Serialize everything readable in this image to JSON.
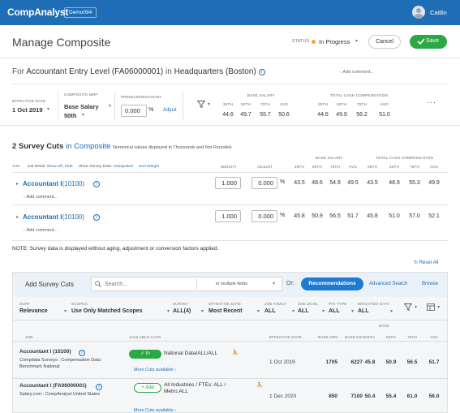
{
  "app": {
    "logo": "CompAnalyst",
    "instance": "Demo094",
    "user": "Caitlin"
  },
  "header": {
    "title": "Manage Composite",
    "status_label": "STATUS",
    "status_value": "In Progress",
    "cancel": "Cancel",
    "save": "Save"
  },
  "for_line": {
    "prefix": "For",
    "job": "Accountant Entry Level (FA06000001)",
    "in": "in",
    "location": "Headquarters (Boston)",
    "add_comment": "Add comment..."
  },
  "composite": {
    "effective_date_label": "EFFECTIVE DATE",
    "effective_date": "1 Oct 2019",
    "composite_mrp_label": "COMPOSITE MRP",
    "mrp_type": "Base Salary",
    "mrp_pct": "50th",
    "premium_label": "PREMIUM/DISCOUNT",
    "premium_value": "0.000",
    "premium_unit": "%",
    "adjust": "Adjust",
    "base_salary_label": "BASE SALARY",
    "tcc_label": "TOTAL CASH COMPENSATION",
    "col_heads": [
      "25TH",
      "50TH",
      "75TH",
      "AVG"
    ],
    "base_values": [
      "44.6",
      "49.7",
      "55.7",
      "50.6"
    ],
    "tcc_values": [
      "44.6",
      "49.9",
      "56.2",
      "51.0"
    ]
  },
  "cuts": {
    "count_text": "2 Survey Cuts",
    "in_composite": "in Composite",
    "note": "Numerical values displayed in Thousands and Not Rounded.",
    "job_label": "JOB",
    "job_detail": "Job Detail:",
    "show_all": "Show all",
    "hide": "Hide",
    "sort_data_label": "Show Survey Data:",
    "unadjusted": "Unadjusted",
    "sort_weight": "Sort Weight",
    "weight_label": "WEIGHT",
    "adjust_label": "ADJUST",
    "base_salary_label": "BASE SALARY",
    "tcc_label": "TOTAL CASH COMPENSATION",
    "col_heads": [
      "25TH",
      "50TH",
      "75TH",
      "AVG",
      "25TH",
      "50TH",
      "75TH",
      "AVG"
    ],
    "rows": [
      {
        "name": "Accountant I",
        "code": "(10100)",
        "weight": "1.000",
        "adjust": "0.000",
        "values": [
          "43.5",
          "48.6",
          "54.9",
          "49.5",
          "43.5",
          "48.9",
          "55.3",
          "49.9"
        ],
        "add_comment": "Add comment..."
      },
      {
        "name": "Accountant I",
        "code": "(10100)",
        "weight": "1.000",
        "adjust": "0.000",
        "values": [
          "45.8",
          "50.9",
          "56.5",
          "51.7",
          "45.8",
          "51.0",
          "57.0",
          "52.1"
        ],
        "add_comment": "Add comment..."
      }
    ],
    "footnote": "NOTE: Survey data is displayed without aging, adjustment or conversion factors applied.",
    "reset": "Reset All"
  },
  "add_cuts": {
    "title": "Add Survey Cuts",
    "search_placeholder": "Search...",
    "in_fields": "in",
    "fields_value": "multiple fields",
    "or": "Or:",
    "recommendations": "Recommendations",
    "advanced_search": "Advanced Search",
    "browse": "Browse",
    "filters": [
      {
        "label": "SORT",
        "value": "Relevance"
      },
      {
        "label": "SCOPES",
        "value": "Use Only Matched Scopes"
      },
      {
        "label": "SURVEY",
        "value": "ALL(4)"
      },
      {
        "label": "EFFECTIVE DATE",
        "value": "Most Recent"
      },
      {
        "label": "JOB FAMILY",
        "value": "ALL"
      },
      {
        "label": "JOB LEVEL",
        "value": "ALL"
      },
      {
        "label": "PAY TYPE",
        "value": "ALL"
      },
      {
        "label": "WEIGHTED DATA",
        "value": "ALL"
      }
    ],
    "table_heads": {
      "job": "JOB",
      "available_cuts": "AVAILABLE CUTS",
      "effective_date": "EFFECTIVE DATE",
      "base_orgs": "BASE ORG",
      "base_incs": "BASE INCS",
      "base_label": "BASE",
      "p25": "25TH",
      "p50": "50TH",
      "p75": "75TH",
      "avg": "AVG"
    },
    "results": [
      {
        "job": "Accountant I (10100)",
        "source": "Compdata Surveys : Compensation Data Benchmark National",
        "pill": "In",
        "cut": "National Data/ALL/ALL",
        "more": "More Cuts available",
        "date": "1 Oct 2019",
        "orgs": "1705",
        "incs": "6227",
        "values": [
          "45.8",
          "50.9",
          "56.5",
          "51.7"
        ]
      },
      {
        "job": "Accountant I (FA06000001)",
        "source": "Salary.com : CompAnalyst United States",
        "pill": "Add",
        "cut": "All Industries / FTEs: ALL / Metro:ALL",
        "more": "More Cuts available",
        "date": "1 Dec 2020",
        "orgs": "850",
        "incs": "7100",
        "values": [
          "50.4",
          "55.4",
          "61.0",
          "56.0"
        ]
      }
    ]
  }
}
